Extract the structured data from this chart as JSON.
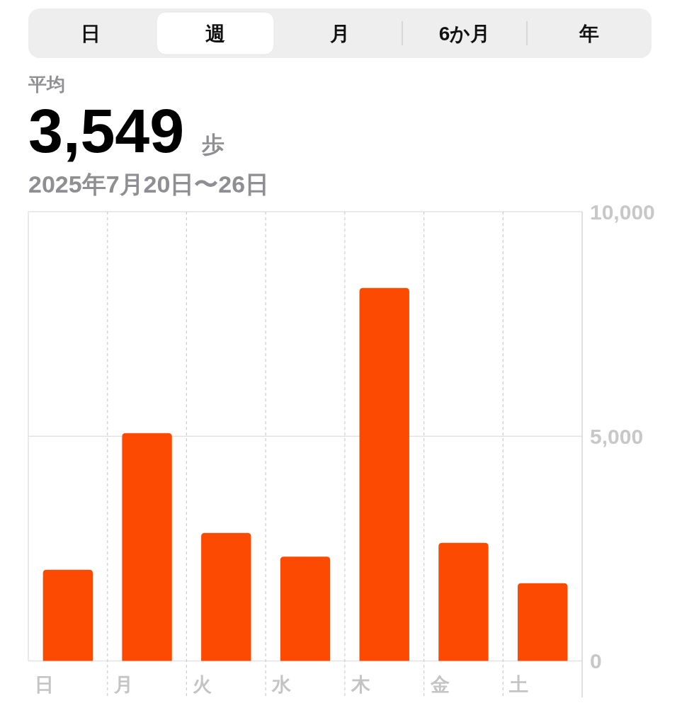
{
  "chart_data": {
    "type": "bar",
    "title": "3,549 歩",
    "subtitle": "2025年7月20日〜26日",
    "annotations": [
      "日",
      "週",
      "月",
      "6か月",
      "年",
      "平均"
    ],
    "categories": [
      "日",
      "月",
      "火",
      "水",
      "木",
      "金",
      "土"
    ],
    "values": [
      2030,
      5070,
      2850,
      2320,
      8300,
      2630,
      1730
    ],
    "color": "#fd4a02",
    "ylim": [
      0,
      10000
    ],
    "yticks": [
      0,
      {
        "value": 5000,
        "label": "5,000"
      },
      {
        "value": 10000,
        "label": "10,000"
      }
    ],
    "grid": true
  }
}
